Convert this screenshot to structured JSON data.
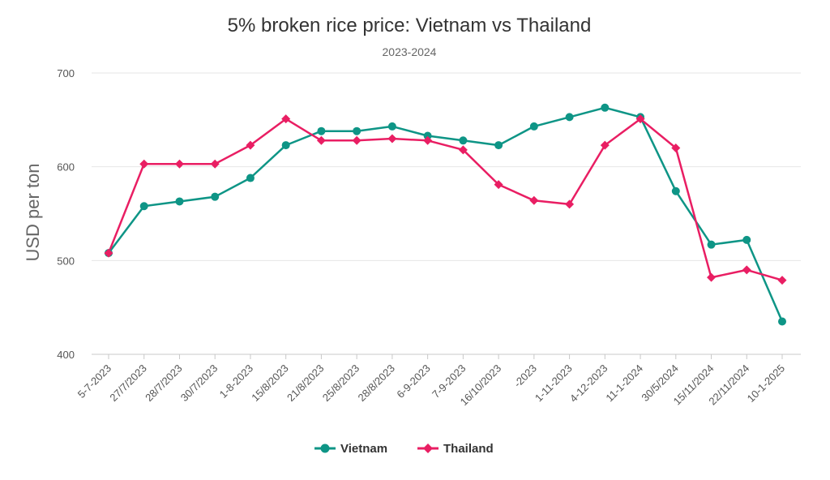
{
  "chart_data": {
    "type": "line",
    "title": "5% broken rice price: Vietnam vs Thailand",
    "subtitle": "2023-2024",
    "xlabel": "",
    "ylabel": "USD per ton",
    "ylim": [
      400,
      700
    ],
    "yticks": [
      400,
      500,
      600,
      700
    ],
    "grid": true,
    "legend": "bottom-center",
    "categories": [
      "5-7-2023",
      "27/7/2023",
      "28/7/2023",
      "30/7/2023",
      "1-8-2023",
      "15/8/2023",
      "21/8/2023",
      "25/8/2023",
      "28/8/2023",
      "6-9-2023",
      "7-9-2023",
      "16/10/2023",
      "-2023",
      "1-11-2023",
      "4-12-2023",
      "11-1-2024",
      "30/5/2024",
      "15/11/2024",
      "22/11/2024",
      "10-1-2025"
    ],
    "series": [
      {
        "name": "Vietnam",
        "color": "#0e9586",
        "marker": "circle",
        "values": [
          508,
          558,
          563,
          568,
          588,
          623,
          638,
          638,
          643,
          633,
          628,
          623,
          643,
          653,
          663,
          653,
          574,
          517,
          522,
          435
        ]
      },
      {
        "name": "Thailand",
        "color": "#e91e63",
        "marker": "diamond",
        "values": [
          508,
          603,
          603,
          603,
          623,
          651,
          628,
          628,
          630,
          628,
          618,
          581,
          564,
          560,
          623,
          651,
          620,
          482,
          490,
          479
        ]
      }
    ]
  }
}
